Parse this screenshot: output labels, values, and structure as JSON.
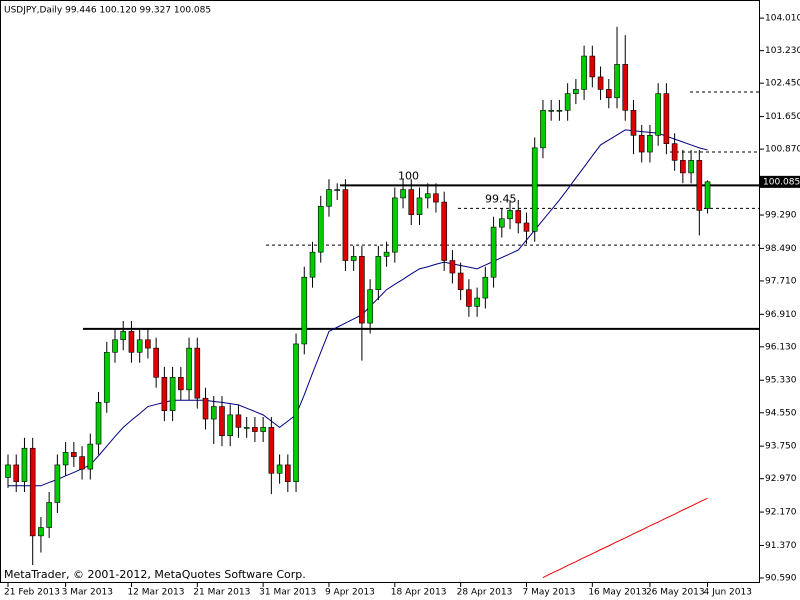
{
  "chart_data": {
    "type": "candlestick",
    "title": "USDJPY,Daily  99.446 100.120 99.327 100.085",
    "footer": "MetaTrader, © 2001-2012, MetaQuotes Software Corp.",
    "categories": [
      "21 Feb 2013",
      null,
      null,
      null,
      null,
      null,
      null,
      "3 Mar 2013",
      null,
      null,
      null,
      null,
      null,
      null,
      null,
      "12 Mar 2013",
      null,
      null,
      null,
      null,
      null,
      null,
      null,
      "21 Mar 2013",
      null,
      null,
      null,
      null,
      null,
      null,
      null,
      "31 Mar 2013",
      null,
      null,
      null,
      null,
      null,
      null,
      null,
      "9 Apr 2013",
      null,
      null,
      null,
      null,
      null,
      null,
      null,
      "18 Apr 2013",
      null,
      null,
      null,
      null,
      null,
      null,
      null,
      "28 Apr 2013",
      null,
      null,
      null,
      null,
      null,
      null,
      null,
      "7 May 2013",
      null,
      null,
      null,
      null,
      null,
      null,
      null,
      "16 May 2013",
      null,
      null,
      null,
      null,
      null,
      null,
      "26 May 2013",
      null,
      null,
      null,
      null,
      null,
      null,
      "4 Jun 2013"
    ],
    "open": [
      93.0,
      93.3,
      92.9,
      93.7,
      91.6,
      91.8,
      92.4,
      93.3,
      93.6,
      93.5,
      93.2,
      93.8,
      94.8,
      96.0,
      96.3,
      96.5,
      96.0,
      96.3,
      96.1,
      95.4,
      94.6,
      95.4,
      95.1,
      96.1,
      94.9,
      94.4,
      94.7,
      94.0,
      94.5,
      94.2,
      94.2,
      94.1,
      94.2,
      93.1,
      93.3,
      92.9,
      96.2,
      97.8,
      98.4,
      99.5,
      99.9,
      99.9,
      98.2,
      98.3,
      96.7,
      97.5,
      98.3,
      98.4,
      99.7,
      99.9,
      99.3,
      99.7,
      99.8,
      99.6,
      98.2,
      97.9,
      97.5,
      97.1,
      97.3,
      97.8,
      99.0,
      99.2,
      99.4,
      99.1,
      98.9,
      100.9,
      101.8,
      101.8,
      101.8,
      102.2,
      102.3,
      103.1,
      102.6,
      102.3,
      102.1,
      102.9,
      101.8,
      101.2,
      100.8,
      101.2,
      102.2,
      101.0,
      100.6,
      100.3,
      100.6,
      99.446
    ],
    "high": [
      93.55,
      93.55,
      93.95,
      93.95,
      92.05,
      92.65,
      93.55,
      93.85,
      93.85,
      93.75,
      94.05,
      95.05,
      96.25,
      96.55,
      96.75,
      96.75,
      96.55,
      96.55,
      96.35,
      95.65,
      95.65,
      95.65,
      96.35,
      96.35,
      95.15,
      94.95,
      94.95,
      94.75,
      94.75,
      94.45,
      94.45,
      94.45,
      94.45,
      93.55,
      93.55,
      96.45,
      98.05,
      98.65,
      99.75,
      100.15,
      100.05,
      100.15,
      98.55,
      98.55,
      97.75,
      98.55,
      98.65,
      99.95,
      100.15,
      100.15,
      99.95,
      100.05,
      100.05,
      99.85,
      98.45,
      98.15,
      97.75,
      97.55,
      98.05,
      99.25,
      99.45,
      99.65,
      99.65,
      99.35,
      101.15,
      102.05,
      102.05,
      102.05,
      102.45,
      102.55,
      103.35,
      103.35,
      102.85,
      102.55,
      103.8,
      103.6,
      102.05,
      101.45,
      101.45,
      102.45,
      102.45,
      101.25,
      100.85,
      100.85,
      100.85,
      100.12
    ],
    "low": [
      92.75,
      92.65,
      92.65,
      90.9,
      91.2,
      91.55,
      92.15,
      93.05,
      93.25,
      92.95,
      92.95,
      93.55,
      94.55,
      95.75,
      96.05,
      95.75,
      95.75,
      95.85,
      95.15,
      94.35,
      94.35,
      94.85,
      94.85,
      94.65,
      94.15,
      93.8,
      93.75,
      93.75,
      93.95,
      93.95,
      93.85,
      93.85,
      92.6,
      92.85,
      92.65,
      92.65,
      95.95,
      97.55,
      98.15,
      99.25,
      99.65,
      97.95,
      97.95,
      95.8,
      96.45,
      97.25,
      98.05,
      98.15,
      99.45,
      99.05,
      99.05,
      99.45,
      99.35,
      97.95,
      97.65,
      97.25,
      96.85,
      96.85,
      97.05,
      97.55,
      98.75,
      98.95,
      98.85,
      98.6,
      98.65,
      100.65,
      101.55,
      101.55,
      101.55,
      101.95,
      102.05,
      102.35,
      102.05,
      101.85,
      101.85,
      101.55,
      100.75,
      100.55,
      100.55,
      100.95,
      100.75,
      100.35,
      100.05,
      100.05,
      98.8,
      99.327
    ],
    "close": [
      93.3,
      92.9,
      93.7,
      91.6,
      91.8,
      92.4,
      93.3,
      93.6,
      93.5,
      93.2,
      93.8,
      94.8,
      96.0,
      96.3,
      96.5,
      96.0,
      96.3,
      96.1,
      95.4,
      94.6,
      95.4,
      95.1,
      96.1,
      94.9,
      94.4,
      94.7,
      94.0,
      94.5,
      94.2,
      94.2,
      94.1,
      94.2,
      93.1,
      93.3,
      92.9,
      96.2,
      97.8,
      98.4,
      99.5,
      99.9,
      99.9,
      98.2,
      98.3,
      96.7,
      97.5,
      98.3,
      98.4,
      99.7,
      99.9,
      99.3,
      99.7,
      99.8,
      99.6,
      98.2,
      97.9,
      97.5,
      97.1,
      97.3,
      97.8,
      99.0,
      99.2,
      99.4,
      99.1,
      98.9,
      100.9,
      101.8,
      101.8,
      101.8,
      102.2,
      102.3,
      103.1,
      102.6,
      102.3,
      102.1,
      102.9,
      101.8,
      101.2,
      100.8,
      101.2,
      102.2,
      101.0,
      100.6,
      100.3,
      100.6,
      99.4,
      100.085
    ],
    "up_color": "#00cc00",
    "down_color": "#dd0000",
    "overlays": [
      {
        "color": "#000080",
        "values": [
          92.8,
          92.8,
          92.8,
          92.8,
          92.8,
          92.88,
          92.95,
          93.04,
          93.12,
          93.21,
          93.3,
          93.52,
          93.75,
          93.98,
          94.2,
          94.37,
          94.53,
          94.7,
          94.75,
          94.8,
          94.85,
          94.85,
          94.85,
          94.85,
          94.85,
          94.82,
          94.8,
          94.77,
          94.74,
          94.66,
          94.58,
          94.5,
          94.35,
          94.2,
          94.35,
          94.5,
          94.98,
          95.5,
          96.0,
          96.5,
          96.6,
          96.7,
          96.8,
          96.9,
          97.1,
          97.3,
          97.5,
          97.63,
          97.75,
          97.88,
          98.0,
          98.05,
          98.11,
          98.16,
          98.12,
          98.08,
          98.04,
          98.0,
          98.09,
          98.18,
          98.27,
          98.36,
          98.45,
          98.69,
          98.93,
          99.17,
          99.41,
          99.65,
          99.91,
          100.18,
          100.44,
          100.71,
          100.97,
          101.09,
          101.21,
          101.33,
          101.31,
          101.29,
          101.27,
          101.25,
          101.18,
          101.11,
          101.04,
          100.97,
          100.9,
          100.85
        ]
      },
      {
        "color": "#ee0000",
        "values": [
          null,
          null,
          null,
          null,
          null,
          null,
          null,
          null,
          null,
          null,
          null,
          null,
          null,
          null,
          null,
          null,
          null,
          null,
          null,
          null,
          null,
          null,
          null,
          null,
          null,
          null,
          null,
          null,
          null,
          null,
          null,
          null,
          null,
          null,
          null,
          null,
          null,
          null,
          null,
          null,
          null,
          null,
          null,
          null,
          null,
          null,
          null,
          null,
          null,
          null,
          null,
          null,
          null,
          null,
          null,
          null,
          null,
          null,
          null,
          null,
          null,
          null,
          null,
          null,
          null,
          90.6,
          90.7,
          90.79,
          90.89,
          90.98,
          91.08,
          91.17,
          91.27,
          91.36,
          91.46,
          91.55,
          91.65,
          91.74,
          91.84,
          91.93,
          92.03,
          92.12,
          92.22,
          92.31,
          92.41,
          92.5
        ]
      }
    ],
    "levels": [
      {
        "value": 100,
        "style": "solid",
        "label": "100"
      },
      {
        "value": 96.56,
        "style": "solid"
      },
      {
        "value": 102.24,
        "style": "dashed"
      },
      {
        "value": 100.8,
        "style": "dashed"
      },
      {
        "value": 99.45,
        "style": "dashed",
        "label": "99.45"
      },
      {
        "value": 98.57,
        "style": "dashed"
      }
    ],
    "current_price": {
      "value": 100.085,
      "label": "100.085"
    },
    "ylim": [
      90.47,
      104.42
    ],
    "yticks": [
      {
        "value": 104.01,
        "label": "104.010"
      },
      {
        "value": 103.23,
        "label": "103.230"
      },
      {
        "value": 102.45,
        "label": "102.450"
      },
      {
        "value": 101.65,
        "label": "101.650"
      },
      {
        "value": 100.87,
        "label": "100.870"
      },
      {
        "value": 99.29,
        "label": "99.290"
      },
      {
        "value": 98.49,
        "label": "98.490"
      },
      {
        "value": 97.71,
        "label": "97.710"
      },
      {
        "value": 96.91,
        "label": "96.910"
      },
      {
        "value": 96.13,
        "label": "96.130"
      },
      {
        "value": 95.33,
        "label": "95.330"
      },
      {
        "value": 94.55,
        "label": "94.550"
      },
      {
        "value": 93.75,
        "label": "93.750"
      },
      {
        "value": 92.97,
        "label": "92.970"
      },
      {
        "value": 92.17,
        "label": "92.170"
      },
      {
        "value": 91.37,
        "label": "91.370"
      },
      {
        "value": 90.59,
        "label": "90.590"
      }
    ]
  }
}
